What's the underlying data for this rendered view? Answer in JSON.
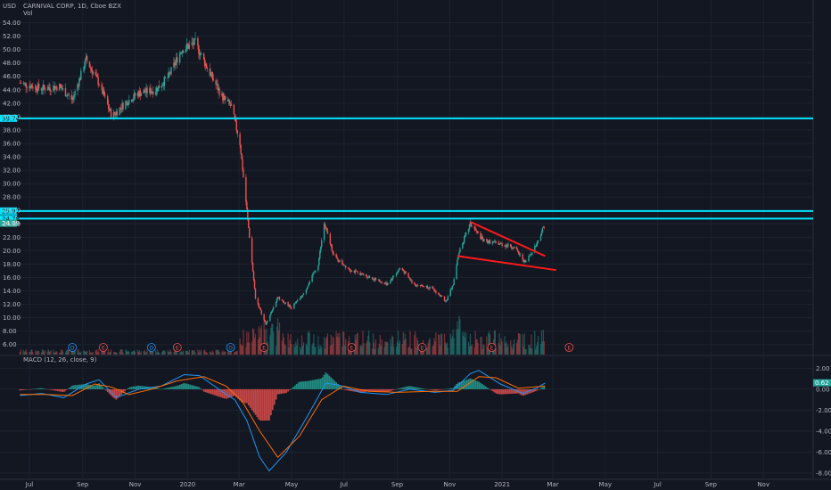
{
  "header": {
    "currency": "USD",
    "symbol_line": "CARNIVAL CORP, 1D, Cboe BZX",
    "volume_label": "Vol",
    "macd_label": "MACD (12, 26, close, 9)"
  },
  "colors": {
    "background": "#131722",
    "grid": "#1e222d",
    "up": "#26a69a",
    "down": "#ef5350",
    "level_line": "#00e5ff",
    "trendline": "#ff1a1a",
    "macd_line": "#2196f3",
    "signal_line": "#ff6d00",
    "axis_text": "#b2b5be"
  },
  "chart_data": [
    {
      "type": "candlestick",
      "title": "CARNIVAL CORP, 1D, Cboe BZX",
      "ylim": [
        4.5,
        55
      ],
      "y_ticks": [
        "54.00",
        "52.00",
        "50.00",
        "48.00",
        "46.00",
        "44.00",
        "42.00",
        "40.00",
        "38.00",
        "36.00",
        "34.00",
        "32.00",
        "30.00",
        "28.00",
        "26.00",
        "24.00",
        "22.00",
        "20.00",
        "18.00",
        "16.00",
        "14.00",
        "12.00",
        "10.00",
        "8.00",
        "6.00"
      ],
      "x_ticks": [
        "Jul",
        "Sep",
        "Nov",
        "2020",
        "Mar",
        "May",
        "Jul",
        "Sep",
        "Nov",
        "2021",
        "Mar",
        "May",
        "Jul",
        "Sep",
        "Nov"
      ],
      "horizontal_levels": [
        {
          "value": 39.74,
          "label": "39.74"
        },
        {
          "value": 25.92,
          "label": "25.92"
        },
        {
          "value": 24.78,
          "label": "24.78"
        }
      ],
      "last_price": {
        "value": 24.09,
        "label": "24.09"
      },
      "trendlines": [
        {
          "x": [
            "2020-11-25",
            "2021-02-20"
          ],
          "y": [
            24.3,
            19.2
          ]
        },
        {
          "x": [
            "2020-11-10",
            "2021-03-05"
          ],
          "y": [
            19.2,
            17.1
          ]
        }
      ],
      "closing_path": [
        [
          "2019-06-20",
          45.0
        ],
        [
          "2019-07-15",
          44.2
        ],
        [
          "2019-08-05",
          44.5
        ],
        [
          "2019-08-20",
          42.5
        ],
        [
          "2019-09-05",
          48.5
        ],
        [
          "2019-09-20",
          45.0
        ],
        [
          "2019-10-05",
          40.0
        ],
        [
          "2019-10-20",
          42.0
        ],
        [
          "2019-11-05",
          43.5
        ],
        [
          "2019-11-25",
          44.0
        ],
        [
          "2019-12-10",
          46.0
        ],
        [
          "2019-12-25",
          50.0
        ],
        [
          "2020-01-10",
          51.0
        ],
        [
          "2020-01-25",
          47.0
        ],
        [
          "2020-02-10",
          43.0
        ],
        [
          "2020-02-21",
          41.5
        ],
        [
          "2020-03-02",
          36.0
        ],
        [
          "2020-03-10",
          26.0
        ],
        [
          "2020-03-20",
          13.0
        ],
        [
          "2020-04-01",
          9.0
        ],
        [
          "2020-04-15",
          13.0
        ],
        [
          "2020-05-01",
          11.5
        ],
        [
          "2020-05-15",
          13.5
        ],
        [
          "2020-06-01",
          18.0
        ],
        [
          "2020-06-08",
          24.0
        ],
        [
          "2020-06-20",
          19.0
        ],
        [
          "2020-07-10",
          17.0
        ],
        [
          "2020-08-01",
          16.0
        ],
        [
          "2020-08-20",
          15.0
        ],
        [
          "2020-09-05",
          17.5
        ],
        [
          "2020-09-20",
          15.0
        ],
        [
          "2020-10-10",
          14.5
        ],
        [
          "2020-10-28",
          12.5
        ],
        [
          "2020-11-05",
          15.0
        ],
        [
          "2020-11-12",
          20.0
        ],
        [
          "2020-11-25",
          24.0
        ],
        [
          "2020-12-10",
          21.5
        ],
        [
          "2020-12-30",
          21.0
        ],
        [
          "2021-01-15",
          20.5
        ],
        [
          "2021-01-28",
          18.2
        ],
        [
          "2021-02-10",
          21.0
        ],
        [
          "2021-02-20",
          24.1
        ]
      ],
      "earnings_markers": {
        "dividend": [
          "2019-08-20",
          "2019-11-20",
          "2020-02-20"
        ],
        "earnings": [
          "2019-09-25",
          "2019-12-20",
          "2020-03-30",
          "2020-07-10",
          "2020-09-30",
          "2020-12-20",
          "2021-03-20"
        ]
      },
      "marker_labels": {
        "dividend": "D",
        "earnings": "E"
      }
    },
    {
      "type": "bar",
      "name": "Vol",
      "note_values": "relative volume, rises sharply from Mar 2020"
    },
    {
      "type": "macd",
      "title": "MACD (12, 26, close, 9)",
      "ylim": [
        -8.6,
        2.8
      ],
      "y_ticks": [
        "2.00",
        "0.00",
        "-2.00",
        "-4.00",
        "-6.00",
        "-8.00"
      ],
      "last_value": {
        "value": 0.62,
        "label": "0.62"
      },
      "macd_path": [
        [
          "2019-06-20",
          -0.6
        ],
        [
          "2019-07-15",
          -0.4
        ],
        [
          "2019-08-10",
          -0.8
        ],
        [
          "2019-09-05",
          0.5
        ],
        [
          "2019-09-20",
          0.9
        ],
        [
          "2019-10-10",
          -0.8
        ],
        [
          "2019-11-05",
          0.0
        ],
        [
          "2019-12-01",
          0.3
        ],
        [
          "2019-12-28",
          1.4
        ],
        [
          "2020-01-15",
          1.3
        ],
        [
          "2020-02-10",
          -0.2
        ],
        [
          "2020-02-25",
          -1.0
        ],
        [
          "2020-03-10",
          -3.0
        ],
        [
          "2020-03-25",
          -6.5
        ],
        [
          "2020-04-05",
          -7.8
        ],
        [
          "2020-04-25",
          -6.0
        ],
        [
          "2020-05-20",
          -2.5
        ],
        [
          "2020-06-10",
          0.6
        ],
        [
          "2020-06-25",
          0.4
        ],
        [
          "2020-07-20",
          -0.3
        ],
        [
          "2020-08-20",
          -0.5
        ],
        [
          "2020-09-15",
          0.0
        ],
        [
          "2020-10-15",
          -0.3
        ],
        [
          "2020-11-05",
          -0.1
        ],
        [
          "2020-11-25",
          1.5
        ],
        [
          "2020-12-05",
          1.8
        ],
        [
          "2020-12-30",
          0.5
        ],
        [
          "2021-01-25",
          -0.4
        ],
        [
          "2021-02-10",
          0.1
        ],
        [
          "2021-02-20",
          0.6
        ]
      ],
      "signal_path": [
        [
          "2019-06-20",
          -0.5
        ],
        [
          "2019-07-20",
          -0.5
        ],
        [
          "2019-08-20",
          -0.6
        ],
        [
          "2019-09-15",
          0.5
        ],
        [
          "2019-10-05",
          0.2
        ],
        [
          "2019-10-25",
          -0.5
        ],
        [
          "2019-11-20",
          0.0
        ],
        [
          "2019-12-20",
          0.8
        ],
        [
          "2020-01-20",
          1.2
        ],
        [
          "2020-02-15",
          0.3
        ],
        [
          "2020-03-05",
          -1.2
        ],
        [
          "2020-03-25",
          -4.0
        ],
        [
          "2020-04-15",
          -6.5
        ],
        [
          "2020-05-10",
          -4.5
        ],
        [
          "2020-06-05",
          -1.0
        ],
        [
          "2020-06-30",
          0.3
        ],
        [
          "2020-07-30",
          -0.2
        ],
        [
          "2020-09-01",
          -0.3
        ],
        [
          "2020-10-10",
          -0.2
        ],
        [
          "2020-11-10",
          -0.2
        ],
        [
          "2020-12-05",
          1.2
        ],
        [
          "2020-12-25",
          1.1
        ],
        [
          "2021-01-20",
          0.1
        ],
        [
          "2021-02-20",
          0.3
        ]
      ]
    }
  ]
}
